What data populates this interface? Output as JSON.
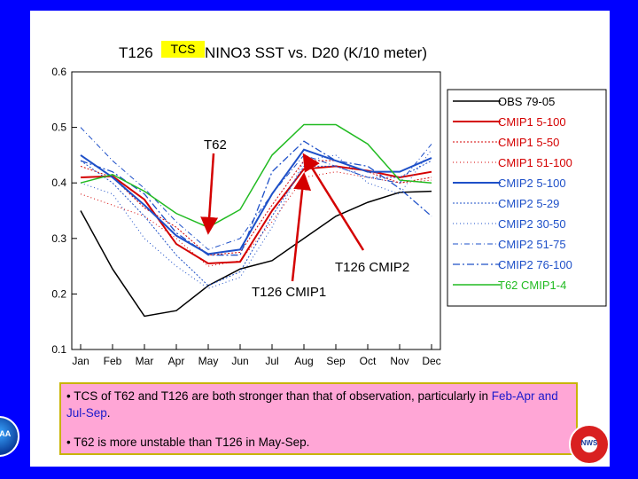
{
  "chart_data": {
    "type": "line",
    "title": "T126 TCS NINO3 SST vs. D20 (K/10 meter)",
    "title_prefix": "T126",
    "title_suffix": "NINO3 SST vs. D20 (K/10 meter)",
    "highlight_label": "TCS",
    "xlabel": "",
    "ylabel": "",
    "categories": [
      "Jan",
      "Feb",
      "Mar",
      "Apr",
      "May",
      "Jun",
      "Jul",
      "Aug",
      "Sep",
      "Oct",
      "Nov",
      "Dec"
    ],
    "ylim": [
      0.1,
      0.6
    ],
    "yticks": [
      "0.1",
      "0.2",
      "0.3",
      "0.4",
      "0.5",
      "0.6"
    ],
    "series": [
      {
        "name": "OBS 79-05",
        "color": "#000000",
        "dash": "",
        "width": 1.5,
        "values": [
          0.35,
          0.245,
          0.16,
          0.17,
          0.215,
          0.245,
          0.26,
          0.3,
          0.34,
          0.365,
          0.383,
          0.385
        ]
      },
      {
        "name": "CMIP1 5-100",
        "color": "#d40000",
        "dash": "",
        "width": 2,
        "values": [
          0.41,
          0.412,
          0.37,
          0.29,
          0.255,
          0.258,
          0.35,
          0.425,
          0.43,
          0.422,
          0.41,
          0.42
        ]
      },
      {
        "name": "CMIP1 5-50",
        "color": "#d40000",
        "dash": "2,2",
        "width": 1,
        "values": [
          0.43,
          0.41,
          0.355,
          0.32,
          0.27,
          0.275,
          0.36,
          0.44,
          0.44,
          0.42,
          0.4,
          0.41
        ]
      },
      {
        "name": "CMIP1 51-100",
        "color": "#d40000",
        "dash": "1,3",
        "width": 1,
        "values": [
          0.38,
          0.36,
          0.34,
          0.3,
          0.25,
          0.26,
          0.33,
          0.41,
          0.42,
          0.41,
          0.4,
          0.405
        ]
      },
      {
        "name": "CMIP2 5-100",
        "color": "#1e50c8",
        "dash": "",
        "width": 2,
        "values": [
          0.45,
          0.41,
          0.36,
          0.305,
          0.272,
          0.28,
          0.38,
          0.46,
          0.44,
          0.42,
          0.42,
          0.445
        ]
      },
      {
        "name": "CMIP2 5-29",
        "color": "#1e50c8",
        "dash": "2,2",
        "width": 1,
        "values": [
          0.44,
          0.4,
          0.34,
          0.27,
          0.215,
          0.24,
          0.34,
          0.43,
          0.43,
          0.41,
          0.41,
          0.44
        ]
      },
      {
        "name": "CMIP2 30-50",
        "color": "#1e50c8",
        "dash": "1,3",
        "width": 1,
        "values": [
          0.4,
          0.38,
          0.3,
          0.25,
          0.21,
          0.23,
          0.32,
          0.44,
          0.45,
          0.4,
          0.38,
          0.46
        ]
      },
      {
        "name": "CMIP2 51-75",
        "color": "#1e50c8",
        "dash": "6,3,1,3",
        "width": 1,
        "values": [
          0.5,
          0.44,
          0.39,
          0.33,
          0.28,
          0.3,
          0.38,
          0.45,
          0.43,
          0.41,
          0.4,
          0.47
        ]
      },
      {
        "name": "CMIP2 76-100",
        "color": "#1e50c8",
        "dash": "8,3,2,3",
        "width": 1.3,
        "values": [
          0.44,
          0.42,
          0.38,
          0.31,
          0.27,
          0.27,
          0.42,
          0.475,
          0.44,
          0.43,
          0.39,
          0.34
        ]
      },
      {
        "name": "T62 CMIP1-4",
        "color": "#22bb22",
        "dash": "",
        "width": 1.5,
        "values": [
          0.4,
          0.415,
          0.385,
          0.345,
          0.32,
          0.352,
          0.45,
          0.505,
          0.505,
          0.47,
          0.405,
          0.4
        ]
      }
    ],
    "annotations": [
      {
        "text": "T62",
        "month": "May",
        "value": 0.32
      },
      {
        "text": "T126 CMIP2",
        "month": "Aug",
        "value": 0.46
      },
      {
        "text": "T126 CMIP1",
        "month": "Aug",
        "value": 0.425
      }
    ]
  },
  "notes": {
    "bullet1_a": "• TCS of T62 and T126 are both stronger than that of observation, particularly in ",
    "bullet1_hl": "Feb-Apr and Jul-Sep",
    "bullet1_b": ".",
    "bullet2": "• T62 is more unstable than T126 in May-Sep."
  },
  "logos": {
    "left": "NOAA",
    "right": "NWS"
  }
}
